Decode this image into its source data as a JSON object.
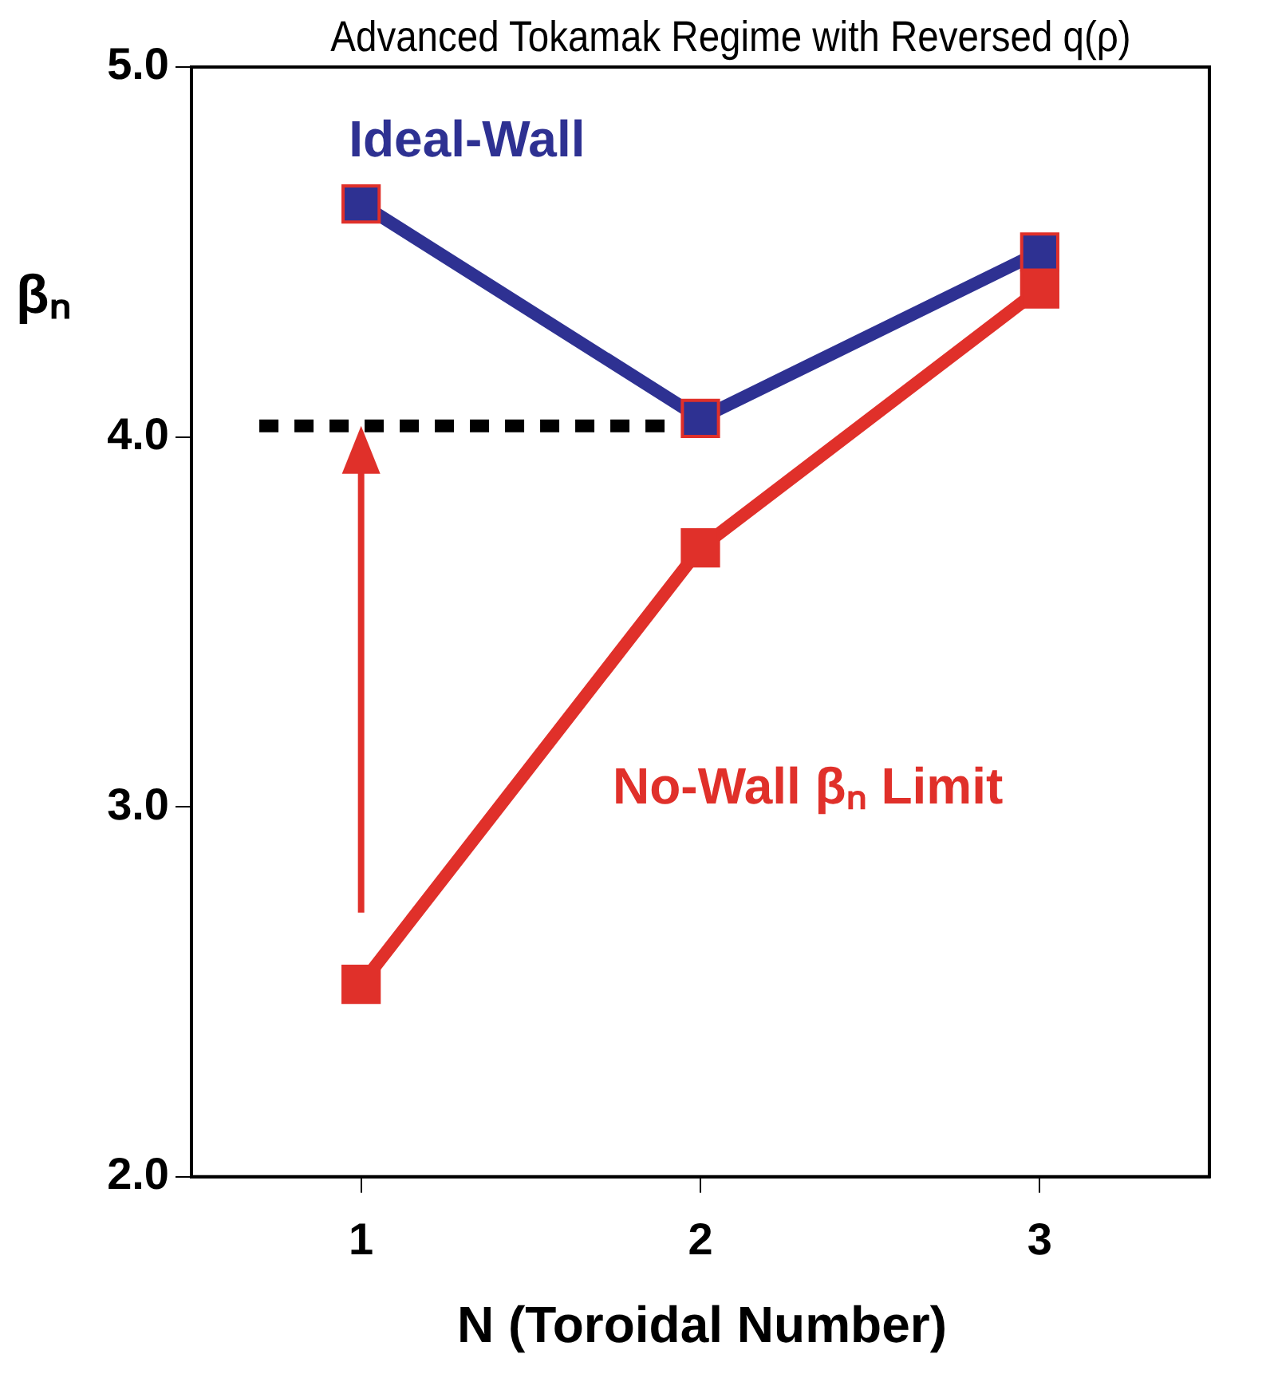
{
  "chart_data": {
    "type": "line",
    "title": "Advanced Tokamak Regime with Reversed q(ρ)",
    "xlabel": "N (Toroidal Number)",
    "ylabel": "βₙ",
    "x": [
      1,
      2,
      3
    ],
    "series": [
      {
        "name": "Ideal-Wall",
        "color": "#2e3192",
        "values": [
          4.63,
          4.05,
          4.5
        ]
      },
      {
        "name": "No-Wall βₙ Limit",
        "color": "#e0302a",
        "values": [
          2.52,
          3.7,
          4.4
        ]
      },
      {
        "type": "line",
        "color": "#000000",
        "x": [
          0.7,
          1.9
        ],
        "values": [
          4.03,
          4.03
        ],
        "line_style": "dashed",
        "marker": "none"
      }
    ],
    "xlim": [
      0.5,
      3.5
    ],
    "xticks": [
      1,
      2,
      3
    ],
    "ylim": [
      2,
      5
    ],
    "yticks": [
      {
        "value": 2,
        "label": "2.0"
      },
      {
        "value": 3,
        "label": "3.0"
      },
      {
        "value": 4,
        "label": "4.0"
      },
      {
        "value": 5,
        "label": "5.0"
      }
    ],
    "marker": "square",
    "grid": false,
    "legend": false
  }
}
